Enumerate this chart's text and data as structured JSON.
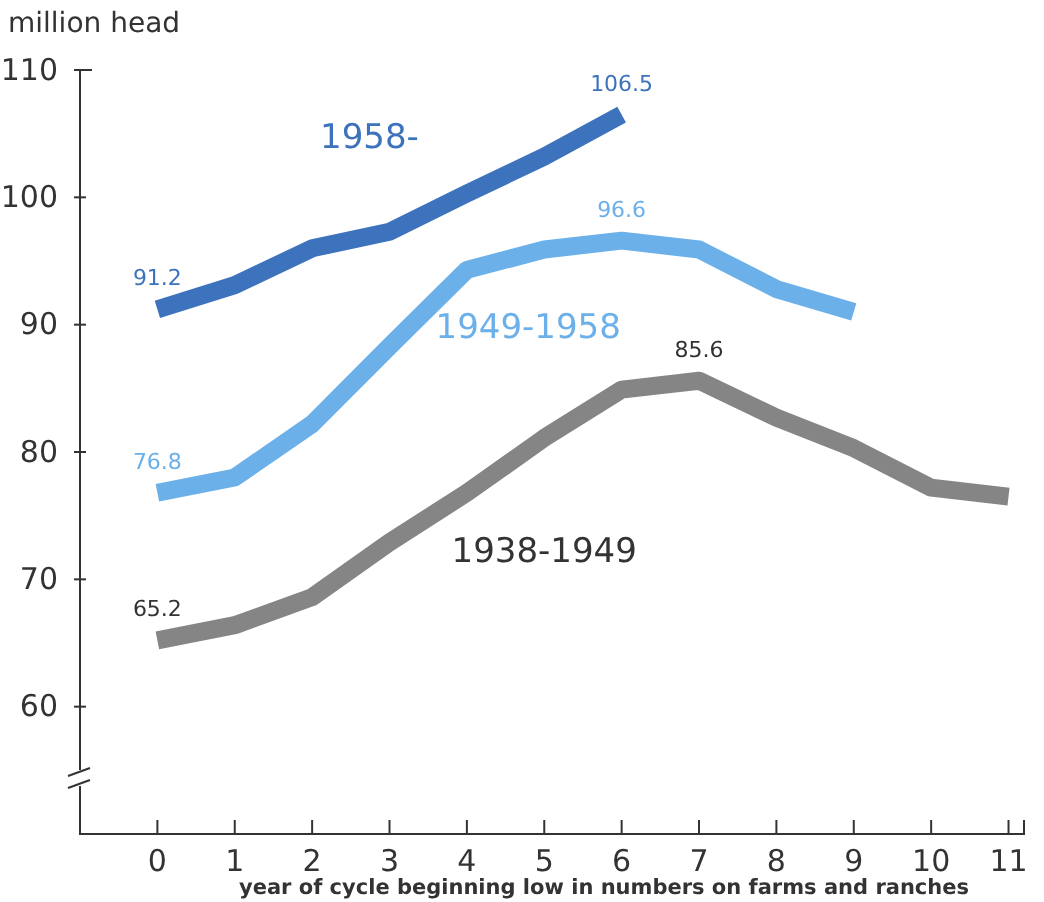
{
  "chart_data": {
    "type": "line",
    "ylabel": "million head",
    "xlabel": "year of cycle beginning low in numbers on farms and ranches",
    "x": [
      0,
      1,
      2,
      3,
      4,
      5,
      6,
      7,
      8,
      9,
      10,
      11
    ],
    "xlim": [
      -1,
      11.2
    ],
    "xticks": [
      0,
      1,
      2,
      3,
      4,
      5,
      6,
      7,
      8,
      9,
      10,
      11
    ],
    "ylim": [
      50,
      110
    ],
    "yticks": [
      60,
      70,
      80,
      90,
      100,
      110
    ],
    "grid": false,
    "legend": false,
    "marker": "none",
    "line_style": "solid",
    "series": [
      {
        "name": "1958-",
        "color": "#3d72bd",
        "values": [
          91.2,
          93.1,
          96.0,
          97.3,
          100.3,
          103.2,
          106.5,
          null,
          null,
          null,
          null,
          null
        ],
        "value_labels": [
          "91.2",
          null,
          null,
          null,
          null,
          null,
          "106.5",
          null,
          null,
          null,
          null,
          null
        ]
      },
      {
        "name": "1949-1958",
        "color": "#6cb0ea",
        "values": [
          76.8,
          78.0,
          82.2,
          88.3,
          94.3,
          95.9,
          96.6,
          95.9,
          92.8,
          91.0,
          null,
          null
        ],
        "value_labels": [
          "76.8",
          null,
          null,
          null,
          null,
          null,
          "96.6",
          null,
          null,
          null,
          null,
          null
        ]
      },
      {
        "name": "1938-1949",
        "color": "#858585",
        "values": [
          65.2,
          66.4,
          68.6,
          72.9,
          76.8,
          81.1,
          84.9,
          85.6,
          82.7,
          80.3,
          77.2,
          76.5
        ],
        "value_labels": [
          "65.2",
          null,
          null,
          null,
          null,
          null,
          null,
          "85.6",
          null,
          null,
          null,
          null
        ]
      }
    ]
  }
}
